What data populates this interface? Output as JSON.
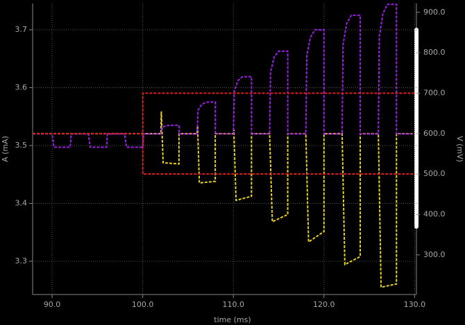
{
  "chart_data": {
    "type": "line",
    "x_label": "time (ms)",
    "y_label": "A (mA)",
    "y2_label": "V (mV)",
    "xlim": [
      87.85,
      130.2
    ],
    "ylim": [
      3.2425,
      3.7455
    ],
    "y2lim": [
      202,
      922
    ],
    "xticks": [
      {
        "value": 90,
        "label": "90.0"
      },
      {
        "value": 100,
        "label": "100.0"
      },
      {
        "value": 110,
        "label": "110.0"
      },
      {
        "value": 120,
        "label": "120.0"
      },
      {
        "value": 130,
        "label": "130.0"
      }
    ],
    "yticks": [
      3.3,
      3.4,
      3.5,
      3.6,
      3.7
    ],
    "y2ticks": [
      {
        "value": 300,
        "label": "300.0"
      },
      {
        "value": 400,
        "label": "400.0"
      },
      {
        "value": 500,
        "label": "500.0"
      },
      {
        "value": 600,
        "label": "600.0"
      },
      {
        "value": 700,
        "label": "700.0"
      },
      {
        "value": 800,
        "label": "800.0"
      },
      {
        "value": 900,
        "label": "900.0"
      }
    ],
    "grid": true,
    "line_style": "dashed",
    "series": [
      {
        "color": "#e8d020",
        "axis": "y2",
        "x": [
          87.85,
          102,
          102.05,
          102.25,
          104,
          104,
          106,
          106.05,
          106.25,
          108,
          108,
          110,
          110.05,
          110.3,
          112,
          112,
          114,
          114.3,
          116,
          116,
          118,
          118.3,
          120,
          120,
          122,
          122.3,
          124,
          124,
          126,
          126.3,
          128,
          128,
          129.8
        ],
        "values": [
          600,
          600,
          655,
          528,
          525,
          600,
          600,
          620,
          478,
          482,
          600,
          600,
          610,
          435,
          445,
          600,
          600,
          382,
          400,
          600,
          600,
          332,
          358,
          600,
          600,
          276,
          296,
          600,
          600,
          220,
          228,
          600,
          600
        ]
      },
      {
        "color": "#9b1fe8",
        "axis": "y",
        "x": [
          87.85,
          90,
          90.2,
          92,
          92.1,
          94,
          94.2,
          96,
          96.1,
          98,
          98.2,
          100,
          100.1,
          102,
          102.1,
          102.5,
          103,
          104,
          104,
          106,
          106.1,
          106.5,
          107,
          108,
          108,
          110,
          110.1,
          110.5,
          111,
          112,
          112,
          114,
          114.1,
          114.5,
          115,
          116,
          116,
          118,
          118.1,
          118.5,
          119,
          120,
          120,
          122,
          122.1,
          122.5,
          123,
          124,
          124,
          126,
          126.1,
          126.5,
          127,
          128,
          128,
          129.8
        ],
        "values": [
          3.52,
          3.52,
          3.497,
          3.497,
          3.52,
          3.52,
          3.497,
          3.497,
          3.52,
          3.52,
          3.497,
          3.497,
          3.52,
          3.52,
          3.531,
          3.534,
          3.535,
          3.535,
          3.52,
          3.52,
          3.561,
          3.571,
          3.575,
          3.575,
          3.52,
          3.52,
          3.594,
          3.612,
          3.619,
          3.619,
          3.52,
          3.52,
          3.627,
          3.653,
          3.663,
          3.663,
          3.52,
          3.52,
          3.655,
          3.687,
          3.7,
          3.7,
          3.52,
          3.52,
          3.674,
          3.711,
          3.725,
          3.725,
          3.52,
          3.52,
          3.688,
          3.728,
          3.744,
          3.744,
          3.52,
          3.52
        ]
      },
      {
        "color": "#e02020",
        "axis": "y2",
        "x": [
          87.85,
          100
        ],
        "values": [
          600,
          600
        ]
      },
      {
        "color": "#e02020",
        "axis": "y2",
        "x": [
          130,
          100,
          100,
          130
        ],
        "values": [
          700,
          700,
          500,
          500
        ]
      }
    ]
  }
}
